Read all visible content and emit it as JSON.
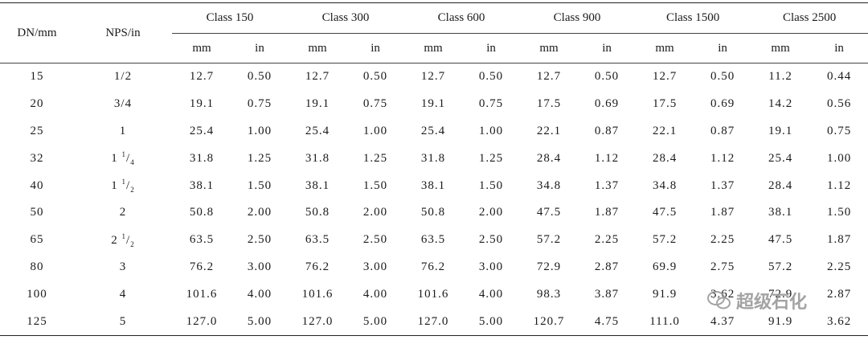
{
  "header": {
    "dn": "DN/mm",
    "nps": "NPS/in",
    "classes": [
      "Class 150",
      "Class 300",
      "Class 600",
      "Class 900",
      "Class 1500",
      "Class 2500"
    ],
    "unit_mm": "mm",
    "unit_in": "in"
  },
  "rows": [
    {
      "dn": "15",
      "nps": {
        "whole": "",
        "num": "",
        "den": "",
        "text": "1/2"
      },
      "vals": [
        "12.7",
        "0.50",
        "12.7",
        "0.50",
        "12.7",
        "0.50",
        "12.7",
        "0.50",
        "12.7",
        "0.50",
        "11.2",
        "0.44"
      ]
    },
    {
      "dn": "20",
      "nps": {
        "whole": "",
        "num": "",
        "den": "",
        "text": "3/4"
      },
      "vals": [
        "19.1",
        "0.75",
        "19.1",
        "0.75",
        "19.1",
        "0.75",
        "17.5",
        "0.69",
        "17.5",
        "0.69",
        "14.2",
        "0.56"
      ]
    },
    {
      "dn": "25",
      "nps": {
        "whole": "",
        "num": "",
        "den": "",
        "text": "1"
      },
      "vals": [
        "25.4",
        "1.00",
        "25.4",
        "1.00",
        "25.4",
        "1.00",
        "22.1",
        "0.87",
        "22.1",
        "0.87",
        "19.1",
        "0.75"
      ]
    },
    {
      "dn": "32",
      "nps": {
        "whole": "1",
        "num": "1",
        "den": "4",
        "text": ""
      },
      "vals": [
        "31.8",
        "1.25",
        "31.8",
        "1.25",
        "31.8",
        "1.25",
        "28.4",
        "1.12",
        "28.4",
        "1.12",
        "25.4",
        "1.00"
      ]
    },
    {
      "dn": "40",
      "nps": {
        "whole": "1",
        "num": "1",
        "den": "2",
        "text": ""
      },
      "vals": [
        "38.1",
        "1.50",
        "38.1",
        "1.50",
        "38.1",
        "1.50",
        "34.8",
        "1.37",
        "34.8",
        "1.37",
        "28.4",
        "1.12"
      ]
    },
    {
      "dn": "50",
      "nps": {
        "whole": "",
        "num": "",
        "den": "",
        "text": "2"
      },
      "vals": [
        "50.8",
        "2.00",
        "50.8",
        "2.00",
        "50.8",
        "2.00",
        "47.5",
        "1.87",
        "47.5",
        "1.87",
        "38.1",
        "1.50"
      ]
    },
    {
      "dn": "65",
      "nps": {
        "whole": "2",
        "num": "1",
        "den": "2",
        "text": ""
      },
      "vals": [
        "63.5",
        "2.50",
        "63.5",
        "2.50",
        "63.5",
        "2.50",
        "57.2",
        "2.25",
        "57.2",
        "2.25",
        "47.5",
        "1.87"
      ]
    },
    {
      "dn": "80",
      "nps": {
        "whole": "",
        "num": "",
        "den": "",
        "text": "3"
      },
      "vals": [
        "76.2",
        "3.00",
        "76.2",
        "3.00",
        "76.2",
        "3.00",
        "72.9",
        "2.87",
        "69.9",
        "2.75",
        "57.2",
        "2.25"
      ]
    },
    {
      "dn": "100",
      "nps": {
        "whole": "",
        "num": "",
        "den": "",
        "text": "4"
      },
      "vals": [
        "101.6",
        "4.00",
        "101.6",
        "4.00",
        "101.6",
        "4.00",
        "98.3",
        "3.87",
        "91.9",
        "3.62",
        "72.9",
        "2.87"
      ]
    },
    {
      "dn": "125",
      "nps": {
        "whole": "",
        "num": "",
        "den": "",
        "text": "5"
      },
      "vals": [
        "127.0",
        "5.00",
        "127.0",
        "5.00",
        "127.0",
        "5.00",
        "120.7",
        "4.75",
        "111.0",
        "4.37",
        "91.9",
        "3.62"
      ]
    }
  ],
  "watermark": {
    "text": "超级石化",
    "icon": "wechat-icon"
  }
}
